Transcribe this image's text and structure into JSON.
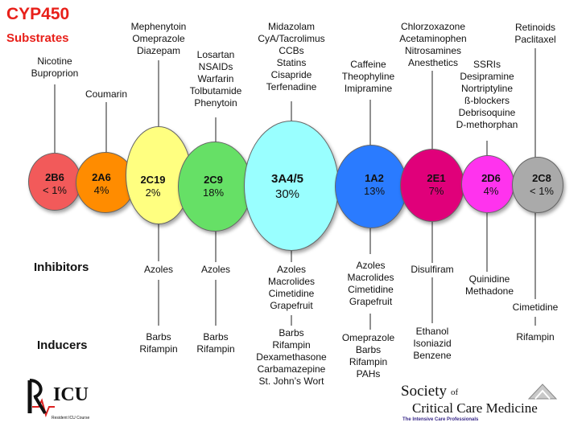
{
  "title": {
    "line1": "CYP450",
    "line2": "Substrates"
  },
  "row_labels": {
    "inhibitors": "Inhibitors",
    "inducers": "Inducers"
  },
  "enzymes": [
    {
      "name": "2B6",
      "percent": "< 1%",
      "color": "#f25a5a",
      "substrates": [
        "Nicotine",
        "Buproprion"
      ],
      "inhibitors": [],
      "inducers": []
    },
    {
      "name": "2A6",
      "percent": "4%",
      "color": "#ff8c00",
      "substrates": [
        "Coumarin"
      ],
      "inhibitors": [],
      "inducers": []
    },
    {
      "name": "2C19",
      "percent": "2%",
      "color": "#ffff80",
      "substrates": [
        "Mephenytoin",
        "Omeprazole",
        "Diazepam"
      ],
      "inhibitors": [
        "Azoles"
      ],
      "inducers": [
        "Barbs",
        "Rifampin"
      ]
    },
    {
      "name": "2C9",
      "percent": "18%",
      "color": "#66e066",
      "substrates": [
        "Losartan",
        "NSAIDs",
        "Warfarin",
        "Tolbutamide",
        "Phenytoin"
      ],
      "inhibitors": [
        "Azoles"
      ],
      "inducers": [
        "Barbs",
        "Rifampin"
      ]
    },
    {
      "name": "3A4/5",
      "percent": "30%",
      "color": "#99ffff",
      "substrates": [
        "Midazolam",
        "CyA/Tacrolimus",
        "CCBs",
        "Statins",
        "Cisapride",
        "Terfenadine"
      ],
      "inhibitors": [
        "Azoles",
        "Macrolides",
        "Cimetidine",
        "Grapefruit"
      ],
      "inducers": [
        "Barbs",
        "Rifampin",
        "Dexamethasone",
        "Carbamazepine",
        "St. John’s Wort"
      ]
    },
    {
      "name": "1A2",
      "percent": "13%",
      "color": "#2a7bff",
      "substrates": [
        "Caffeine",
        "Theophyline",
        "Imipramine"
      ],
      "inhibitors": [
        "Azoles",
        "Macrolides",
        "Cimetidine",
        "Grapefruit"
      ],
      "inducers": [
        "Omeprazole",
        "Barbs",
        "Rifampin",
        "PAHs"
      ]
    },
    {
      "name": "2E1",
      "percent": "7%",
      "color": "#e0007a",
      "substrates": [
        "Chlorzoxazone",
        "Acetaminophen",
        "Nitrosamines",
        "Anesthetics"
      ],
      "inhibitors": [
        "Disulfiram"
      ],
      "inducers": [
        "Ethanol",
        "Isoniazid",
        "Benzene"
      ]
    },
    {
      "name": "2D6",
      "percent": "4%",
      "color": "#ff33ee",
      "substrates": [
        "SSRIs",
        "Desipramine",
        "Nortriptyline",
        "ß-blockers",
        "Debrisoquine",
        "D-methorphan"
      ],
      "inhibitors": [
        "Quinidine",
        "Methadone"
      ],
      "inducers": []
    },
    {
      "name": "2C8",
      "percent": "< 1%",
      "color": "#aaaaaa",
      "substrates": [
        "Retinoids",
        "Paclitaxel"
      ],
      "inhibitors": [
        "Cimetidine"
      ],
      "inducers": [
        "Rifampin"
      ]
    }
  ],
  "logos": {
    "left_main": "ICU",
    "left_tagline": "Resident ICU Course",
    "right_line1": "Society",
    "right_of": "of",
    "right_line2": "Critical Care Medicine",
    "right_tagline": "The Intensive Care Professionals"
  }
}
